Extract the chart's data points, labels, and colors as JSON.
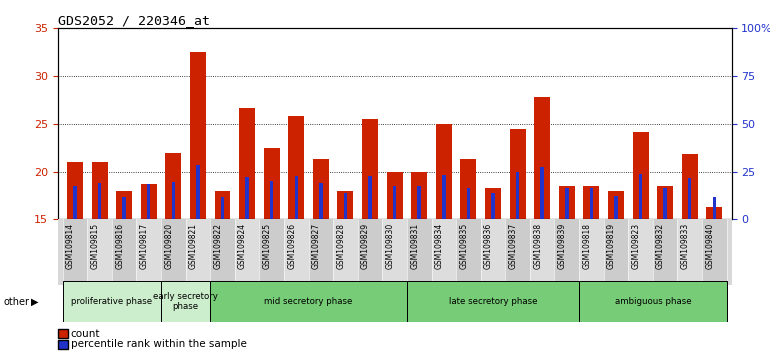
{
  "title": "GDS2052 / 220346_at",
  "samples": [
    "GSM109814",
    "GSM109815",
    "GSM109816",
    "GSM109817",
    "GSM109820",
    "GSM109821",
    "GSM109822",
    "GSM109824",
    "GSM109825",
    "GSM109826",
    "GSM109827",
    "GSM109828",
    "GSM109829",
    "GSM109830",
    "GSM109831",
    "GSM109834",
    "GSM109835",
    "GSM109836",
    "GSM109837",
    "GSM109838",
    "GSM109839",
    "GSM109818",
    "GSM109819",
    "GSM109823",
    "GSM109832",
    "GSM109833",
    "GSM109840"
  ],
  "count_values": [
    21.0,
    21.0,
    18.0,
    18.7,
    22.0,
    32.5,
    18.0,
    26.7,
    22.5,
    25.8,
    21.3,
    18.0,
    25.5,
    20.0,
    20.0,
    25.0,
    21.3,
    18.3,
    24.5,
    27.8,
    18.5,
    18.5,
    18.0,
    24.2,
    18.5,
    21.8,
    16.3
  ],
  "percentile_values": [
    18.5,
    18.8,
    17.3,
    18.7,
    18.9,
    20.7,
    17.3,
    19.4,
    19.0,
    19.5,
    18.8,
    17.8,
    19.5,
    18.5,
    18.5,
    19.7,
    18.3,
    17.8,
    20.0,
    20.5,
    18.3,
    18.3,
    17.5,
    19.8,
    18.3,
    19.3,
    17.3
  ],
  "ylim_left": [
    15,
    35
  ],
  "ylim_right": [
    0,
    100
  ],
  "yticks_left": [
    15,
    20,
    25,
    30,
    35
  ],
  "yticks_right": [
    0,
    25,
    50,
    75,
    100
  ],
  "bar_color_count": "#cc2200",
  "bar_color_pct": "#2233cc",
  "left_axis_color": "#cc2200",
  "right_axis_color": "#2233cc",
  "bar_width": 0.65,
  "phase_defs": [
    {
      "label": "proliferative phase",
      "start": 0,
      "end": 4,
      "color": "#cceecc"
    },
    {
      "label": "early secretory\nphase",
      "start": 4,
      "end": 6,
      "color": "#cceecc"
    },
    {
      "label": "mid secretory phase",
      "start": 6,
      "end": 14,
      "color": "#77cc77"
    },
    {
      "label": "late secretory phase",
      "start": 14,
      "end": 21,
      "color": "#77cc77"
    },
    {
      "label": "ambiguous phase",
      "start": 21,
      "end": 27,
      "color": "#77cc77"
    }
  ]
}
